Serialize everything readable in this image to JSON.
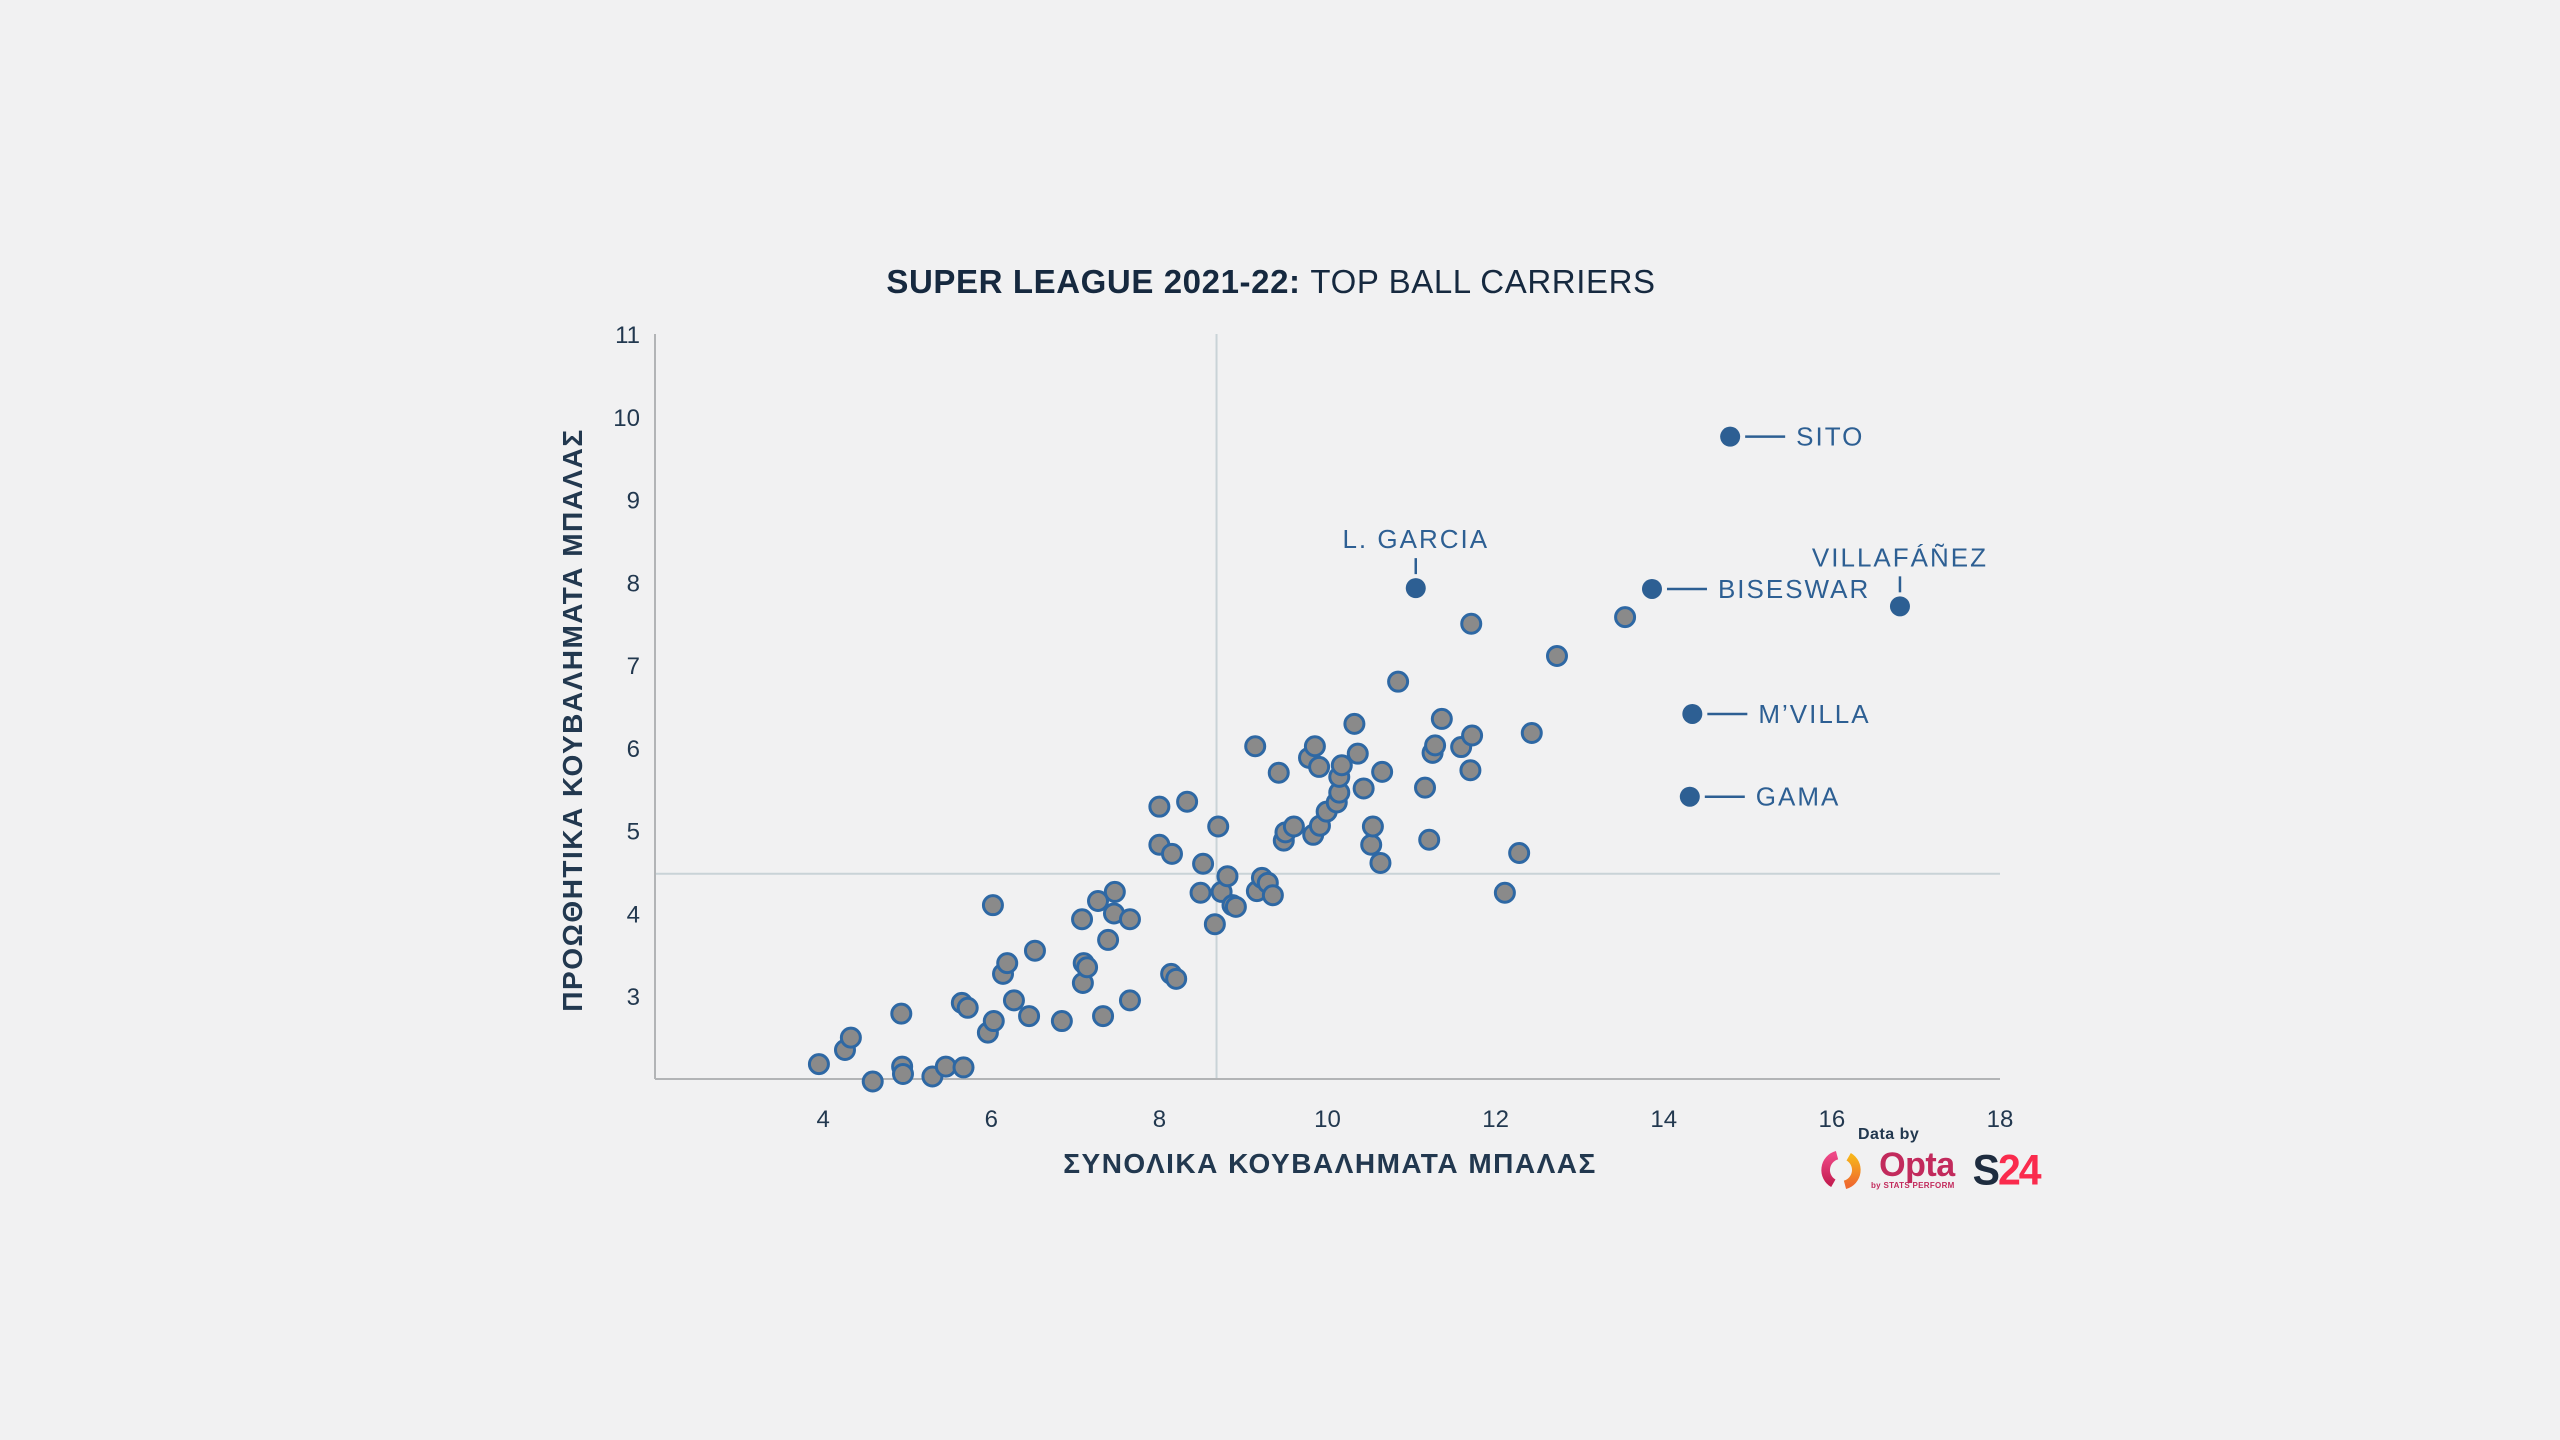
{
  "title": {
    "bold": "SUPER LEAGUE 2021-22:",
    "regular": "TOP BALL CARRIERS"
  },
  "chart_data": {
    "type": "scatter",
    "title": "SUPER LEAGUE 2021-22: TOP BALL CARRIERS",
    "xlabel": "ΣΥΝΟΛΙΚΑ ΚΟΥΒΑΛΗΜΑΤΑ ΜΠΑΛΑΣ",
    "ylabel": "ΠΡΟΩΘΗΤΙΚΑ ΚΟΥΒΑΛΗΜΑΤΑ ΜΠΑΛΑΣ",
    "xlim": [
      2,
      18
    ],
    "ylim": [
      2,
      11
    ],
    "x_ticks": [
      4,
      6,
      8,
      10,
      12,
      14,
      16,
      18
    ],
    "y_ticks": [
      3,
      4,
      5,
      6,
      7,
      8,
      9,
      10,
      11
    ],
    "grid": false,
    "reference_lines": {
      "x": 8.68,
      "y": 4.48
    },
    "series": [
      {
        "name": "league-players",
        "marker": "circle",
        "points": [
          [
            3.95,
            2.18
          ],
          [
            4.26,
            2.35
          ],
          [
            4.33,
            2.5
          ],
          [
            4.59,
            1.97
          ],
          [
            4.93,
            2.79
          ],
          [
            4.94,
            2.15
          ],
          [
            4.95,
            2.06
          ],
          [
            5.3,
            2.03
          ],
          [
            5.46,
            2.15
          ],
          [
            5.67,
            2.14
          ],
          [
            5.65,
            2.92
          ],
          [
            5.72,
            2.86
          ],
          [
            5.96,
            2.56
          ],
          [
            6.03,
            2.7
          ],
          [
            6.02,
            4.1
          ],
          [
            6.14,
            3.27
          ],
          [
            6.19,
            3.4
          ],
          [
            6.27,
            2.95
          ],
          [
            6.45,
            2.76
          ],
          [
            6.52,
            3.55
          ],
          [
            6.84,
            2.7
          ],
          [
            7.08,
            3.93
          ],
          [
            7.09,
            3.16
          ],
          [
            7.1,
            3.4
          ],
          [
            7.14,
            3.35
          ],
          [
            7.27,
            4.15
          ],
          [
            7.33,
            2.76
          ],
          [
            7.39,
            3.68
          ],
          [
            7.46,
            4.0
          ],
          [
            7.47,
            4.26
          ],
          [
            7.65,
            3.93
          ],
          [
            7.65,
            2.95
          ],
          [
            8.0,
            4.83
          ],
          [
            8.15,
            4.72
          ],
          [
            8.14,
            3.27
          ],
          [
            8.2,
            3.21
          ],
          [
            8.49,
            4.25
          ],
          [
            8.52,
            4.6
          ],
          [
            8.66,
            3.87
          ],
          [
            8.74,
            4.26
          ],
          [
            8.81,
            4.45
          ],
          [
            8.87,
            4.1
          ],
          [
            8.91,
            4.08
          ],
          [
            9.16,
            4.27
          ],
          [
            9.22,
            4.43
          ],
          [
            9.29,
            4.37
          ],
          [
            9.35,
            4.22
          ],
          [
            8.0,
            5.29
          ],
          [
            8.33,
            5.35
          ],
          [
            8.7,
            5.05
          ],
          [
            9.14,
            6.02
          ],
          [
            9.42,
            5.7
          ],
          [
            9.48,
            4.88
          ],
          [
            9.5,
            4.98
          ],
          [
            9.6,
            5.05
          ],
          [
            9.83,
            4.95
          ],
          [
            9.91,
            5.06
          ],
          [
            9.78,
            5.88
          ],
          [
            9.85,
            6.02
          ],
          [
            9.9,
            5.77
          ],
          [
            9.99,
            5.23
          ],
          [
            10.11,
            5.34
          ],
          [
            10.14,
            5.46
          ],
          [
            10.14,
            5.65
          ],
          [
            10.17,
            5.79
          ],
          [
            10.32,
            6.29
          ],
          [
            10.36,
            5.93
          ],
          [
            10.43,
            5.51
          ],
          [
            10.52,
            4.83
          ],
          [
            10.54,
            5.05
          ],
          [
            10.63,
            4.61
          ],
          [
            10.65,
            5.71
          ],
          [
            10.84,
            6.8
          ],
          [
            11.16,
            5.52
          ],
          [
            11.21,
            4.89
          ],
          [
            11.25,
            5.94
          ],
          [
            11.28,
            6.03
          ],
          [
            11.36,
            6.35
          ],
          [
            11.59,
            6.01
          ],
          [
            11.7,
            5.73
          ],
          [
            11.72,
            6.15
          ],
          [
            11.71,
            7.5
          ],
          [
            12.11,
            4.25
          ],
          [
            12.28,
            4.73
          ],
          [
            12.43,
            6.18
          ],
          [
            12.73,
            7.11
          ],
          [
            13.54,
            7.58
          ]
        ]
      },
      {
        "name": "highlighted-players",
        "marker": "circle",
        "points": [
          {
            "label": "SITO",
            "x": 14.79,
            "y": 9.76,
            "label_side": "right"
          },
          {
            "label": "L. GARCIA",
            "x": 11.05,
            "y": 7.93,
            "label_side": "top"
          },
          {
            "label": "BISESWAR",
            "x": 13.86,
            "y": 7.92,
            "label_side": "right"
          },
          {
            "label": "VILLAFÁÑEZ",
            "x": 16.81,
            "y": 7.71,
            "label_side": "top"
          },
          {
            "label": "M’VILLA",
            "x": 14.34,
            "y": 6.41,
            "label_side": "right"
          },
          {
            "label": "GAMA",
            "x": 14.31,
            "y": 5.41,
            "label_side": "right"
          }
        ]
      }
    ],
    "legend": null
  },
  "logos": {
    "data_by": "Data by",
    "opta": "Opta",
    "opta_sub": "by STATS PERFORM",
    "s24_s": "S",
    "s24_number": "24"
  },
  "colors": {
    "background": "#f1f1f2",
    "title": "#16293f",
    "tick_text": "#22384f",
    "axis_line": "#b2b4b6",
    "reference_line": "#c9d3d7",
    "dot_fill": "#8a8a8a",
    "dot_stroke": "#2e68a4",
    "highlight": "#2d5f93",
    "opta_crimson": "#c22a5c",
    "opta_magenta": "#ee4886",
    "opta_orange": "#f7a81c",
    "s24_dark": "#1e2c3f",
    "s24_red": "#fa2b4d"
  }
}
